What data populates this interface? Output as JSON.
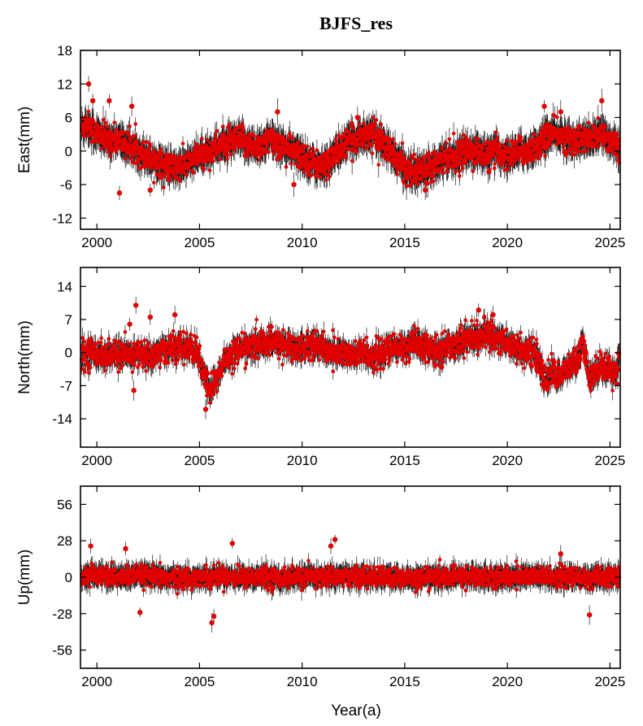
{
  "figure_title": "BJFS_res",
  "xlabel": "Year(a)",
  "chart_data": [
    {
      "type": "scatter",
      "title": "",
      "ylabel": "East(mm)",
      "xlim": [
        1999.2,
        2025.5
      ],
      "ylim": [
        -14,
        18
      ],
      "yticks": [
        18,
        12,
        6,
        0,
        -6,
        -12
      ],
      "xticks": [
        2000,
        2005,
        2010,
        2015,
        2020,
        2025
      ],
      "grid": false,
      "marker_color": "#e00000",
      "errorbar_color": "#1a1a1a",
      "series": [
        {
          "x": [
            1999.2,
            1999.5,
            2000.0,
            2000.5,
            2001.0,
            2001.5,
            2002.0,
            2002.5,
            2003.0,
            2003.5,
            2004.0,
            2004.5,
            2005.0,
            2005.5,
            2006.0,
            2006.5,
            2007.0,
            2007.5,
            2008.0,
            2008.5,
            2009.0,
            2009.5,
            2010.0,
            2010.5,
            2011.0,
            2011.5,
            2012.0,
            2012.5,
            2013.0,
            2013.5,
            2014.0,
            2014.5,
            2015.0,
            2015.5,
            2016.0,
            2016.5,
            2017.0,
            2017.5,
            2018.0,
            2018.5,
            2019.0,
            2019.5,
            2020.0,
            2020.5,
            2021.0,
            2021.5,
            2022.0,
            2022.5,
            2023.0,
            2023.5,
            2024.0,
            2024.5,
            2025.0,
            2025.5
          ],
          "y": [
            4,
            5,
            3,
            2,
            2,
            1,
            0,
            -1,
            -2,
            -3,
            -3,
            -2,
            -1,
            0,
            1,
            1.5,
            2,
            1,
            1,
            2,
            1,
            0,
            -1,
            -2,
            -3,
            -1,
            1,
            2,
            3,
            3,
            1,
            -1,
            -3,
            -4,
            -3,
            -2,
            -1,
            -1,
            0,
            0,
            -1,
            0,
            -1,
            0,
            0,
            1,
            3,
            3,
            2,
            2,
            2,
            3,
            2,
            1
          ],
          "spread": 2.2,
          "error": 1.8,
          "outliers": [
            [
              1999.6,
              12
            ],
            [
              1999.8,
              9
            ],
            [
              2000.6,
              9
            ],
            [
              2001.1,
              -7.5
            ],
            [
              2001.7,
              8
            ],
            [
              2002.6,
              -7
            ],
            [
              2008.8,
              7
            ],
            [
              2009.6,
              -6
            ],
            [
              2012.7,
              6
            ],
            [
              2016.0,
              -7
            ],
            [
              2021.8,
              8
            ],
            [
              2022.6,
              7
            ],
            [
              2024.6,
              9
            ]
          ]
        }
      ]
    },
    {
      "type": "scatter",
      "title": "",
      "ylabel": "North(mm)",
      "xlim": [
        1999.2,
        2025.5
      ],
      "ylim": [
        -20,
        18
      ],
      "yticks": [
        14,
        7,
        0,
        -7,
        -14
      ],
      "xticks": [
        2000,
        2005,
        2010,
        2015,
        2020,
        2025
      ],
      "grid": false,
      "marker_color": "#e00000",
      "errorbar_color": "#1a1a1a",
      "series": [
        {
          "x": [
            1999.2,
            1999.5,
            2000.0,
            2000.5,
            2001.0,
            2001.5,
            2002.0,
            2002.5,
            2003.0,
            2003.5,
            2004.0,
            2004.5,
            2004.9,
            2005.2,
            2005.5,
            2005.8,
            2006.2,
            2006.6,
            2007.0,
            2007.5,
            2008.0,
            2008.5,
            2009.0,
            2009.5,
            2010.0,
            2010.5,
            2011.0,
            2011.5,
            2012.0,
            2012.5,
            2013.0,
            2013.5,
            2014.0,
            2014.5,
            2015.0,
            2015.5,
            2016.0,
            2016.5,
            2017.0,
            2017.5,
            2018.0,
            2018.5,
            2019.0,
            2019.5,
            2020.0,
            2020.5,
            2021.0,
            2021.4,
            2021.8,
            2022.2,
            2022.6,
            2023.0,
            2023.4,
            2023.7,
            2024.0,
            2024.4,
            2024.8,
            2025.2,
            2025.5
          ],
          "y": [
            -1,
            0,
            0,
            -1,
            0,
            -1,
            0,
            -1,
            0,
            1,
            1,
            1,
            0,
            -5,
            -8,
            -6,
            -2,
            0,
            1,
            1,
            2,
            2,
            2,
            1,
            1,
            2,
            1,
            0,
            0,
            -1,
            0,
            -1,
            0,
            1,
            1,
            2,
            1,
            0,
            1,
            2,
            3,
            3,
            4,
            3,
            2,
            1,
            0,
            0,
            -6,
            -4,
            -5,
            -3,
            -2,
            2,
            -6,
            -3,
            -3,
            -4,
            -2
          ],
          "spread": 2.6,
          "error": 1.6,
          "outliers": [
            [
              2001.9,
              10
            ],
            [
              2002.6,
              7.5
            ],
            [
              2001.6,
              6
            ],
            [
              2001.8,
              -8
            ],
            [
              2003.8,
              8
            ],
            [
              2005.3,
              -12
            ],
            [
              2019.3,
              8
            ],
            [
              2018.6,
              9
            ]
          ]
        }
      ]
    },
    {
      "type": "scatter",
      "title": "",
      "ylabel": "Up(mm)",
      "xlim": [
        1999.2,
        2025.5
      ],
      "ylim": [
        -70,
        70
      ],
      "yticks": [
        56,
        28,
        0,
        -28,
        -56
      ],
      "xticks": [
        2000,
        2005,
        2010,
        2015,
        2020,
        2025
      ],
      "grid": false,
      "marker_color": "#e00000",
      "errorbar_color": "#1a1a1a",
      "series": [
        {
          "x": [
            1999.2,
            2000.0,
            2001.0,
            2002.0,
            2003.0,
            2004.0,
            2005.0,
            2006.0,
            2007.0,
            2008.0,
            2009.0,
            2010.0,
            2011.0,
            2012.0,
            2013.0,
            2014.0,
            2015.0,
            2016.0,
            2017.0,
            2018.0,
            2019.0,
            2020.0,
            2021.0,
            2022.0,
            2023.0,
            2024.0,
            2025.0,
            2025.5
          ],
          "y": [
            0,
            2,
            0,
            1,
            0,
            -1,
            0,
            1,
            0,
            0,
            -1,
            0,
            0,
            1,
            0,
            0,
            -1,
            0,
            0,
            1,
            0,
            0,
            1,
            0,
            0,
            -1,
            0,
            0
          ],
          "spread": 6.5,
          "error": 6,
          "outliers": [
            [
              1999.7,
              24
            ],
            [
              2005.6,
              -35
            ],
            [
              2005.7,
              -30
            ],
            [
              2006.6,
              26
            ],
            [
              2011.4,
              24
            ],
            [
              2011.6,
              29
            ],
            [
              2024.0,
              -29
            ],
            [
              2022.6,
              18
            ],
            [
              2001.4,
              22
            ],
            [
              2002.1,
              -27
            ]
          ]
        }
      ]
    }
  ]
}
